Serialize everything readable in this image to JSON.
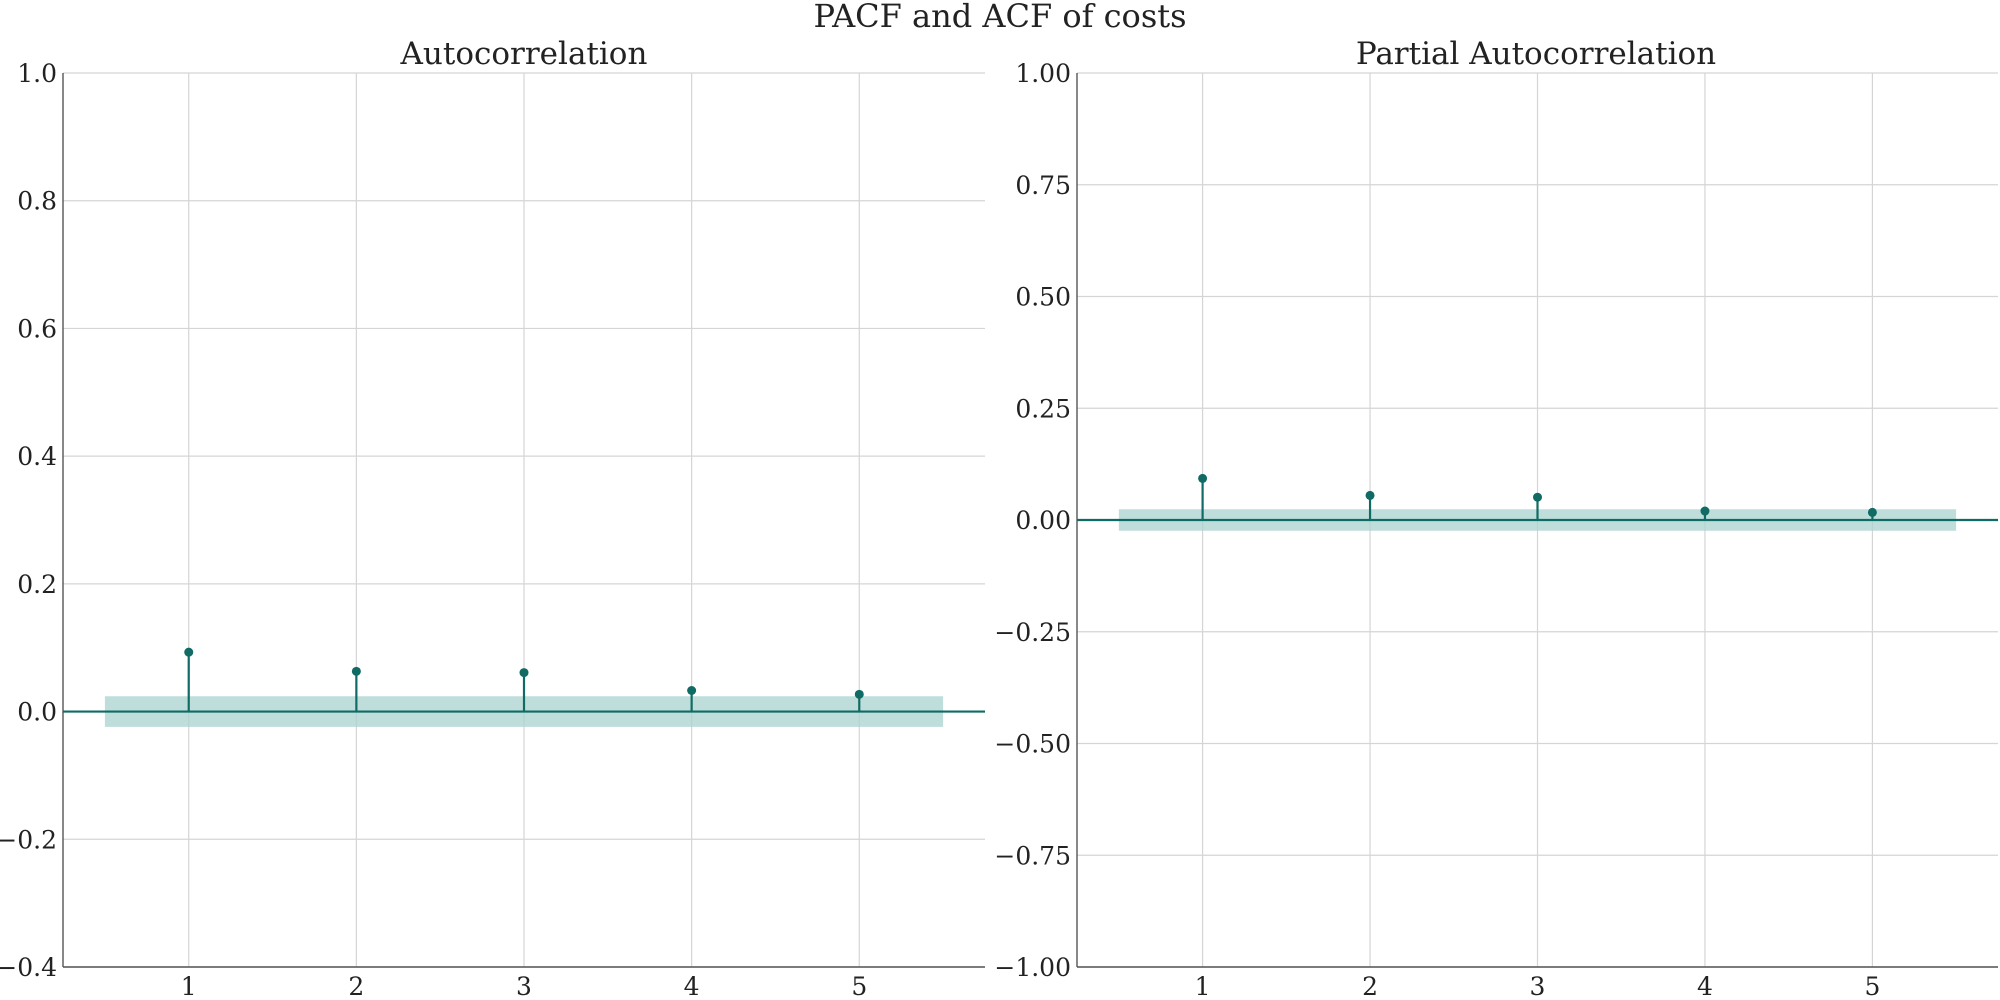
{
  "figure": {
    "title": "PACF and ACF of costs",
    "colors": {
      "stem": "#0f6b63",
      "band": "#a9d3cf",
      "grid": "#d5d5d5",
      "text": "#222222"
    }
  },
  "chart_data": [
    {
      "type": "stem",
      "title": "Autocorrelation",
      "xlabel": "",
      "ylabel": "",
      "xlim": [
        0.25,
        5.75
      ],
      "ylim": [
        -0.4,
        1.0
      ],
      "x": [
        1,
        2,
        3,
        4,
        5
      ],
      "values": [
        0.093,
        0.063,
        0.061,
        0.033,
        0.027
      ],
      "confidence_band": [
        -0.024,
        0.024
      ],
      "band_xrange": [
        0.5,
        5.5
      ],
      "x_ticks": [
        1,
        2,
        3,
        4,
        5
      ],
      "x_tick_labels": [
        "1",
        "2",
        "3",
        "4",
        "5"
      ],
      "y_ticks": [
        -0.4,
        -0.2,
        0.0,
        0.2,
        0.4,
        0.6,
        0.8,
        1.0
      ],
      "y_tick_labels": [
        "−0.4",
        "−0.2",
        "0.0",
        "0.2",
        "0.4",
        "0.6",
        "0.8",
        "1.0"
      ],
      "grid": true
    },
    {
      "type": "stem",
      "title": "Partial Autocorrelation",
      "xlabel": "",
      "ylabel": "",
      "xlim": [
        0.25,
        5.75
      ],
      "ylim": [
        -1.0,
        1.0
      ],
      "x": [
        1,
        2,
        3,
        4,
        5
      ],
      "values": [
        0.093,
        0.055,
        0.051,
        0.02,
        0.017
      ],
      "confidence_band": [
        -0.024,
        0.024
      ],
      "band_xrange": [
        0.5,
        5.5
      ],
      "x_ticks": [
        1,
        2,
        3,
        4,
        5
      ],
      "x_tick_labels": [
        "1",
        "2",
        "3",
        "4",
        "5"
      ],
      "y_ticks": [
        -1.0,
        -0.75,
        -0.5,
        -0.25,
        0.0,
        0.25,
        0.5,
        0.75,
        1.0
      ],
      "y_tick_labels": [
        "−1.00",
        "−0.75",
        "−0.50",
        "−0.25",
        "0.00",
        "0.25",
        "0.50",
        "0.75",
        "1.00"
      ],
      "grid": true
    }
  ]
}
